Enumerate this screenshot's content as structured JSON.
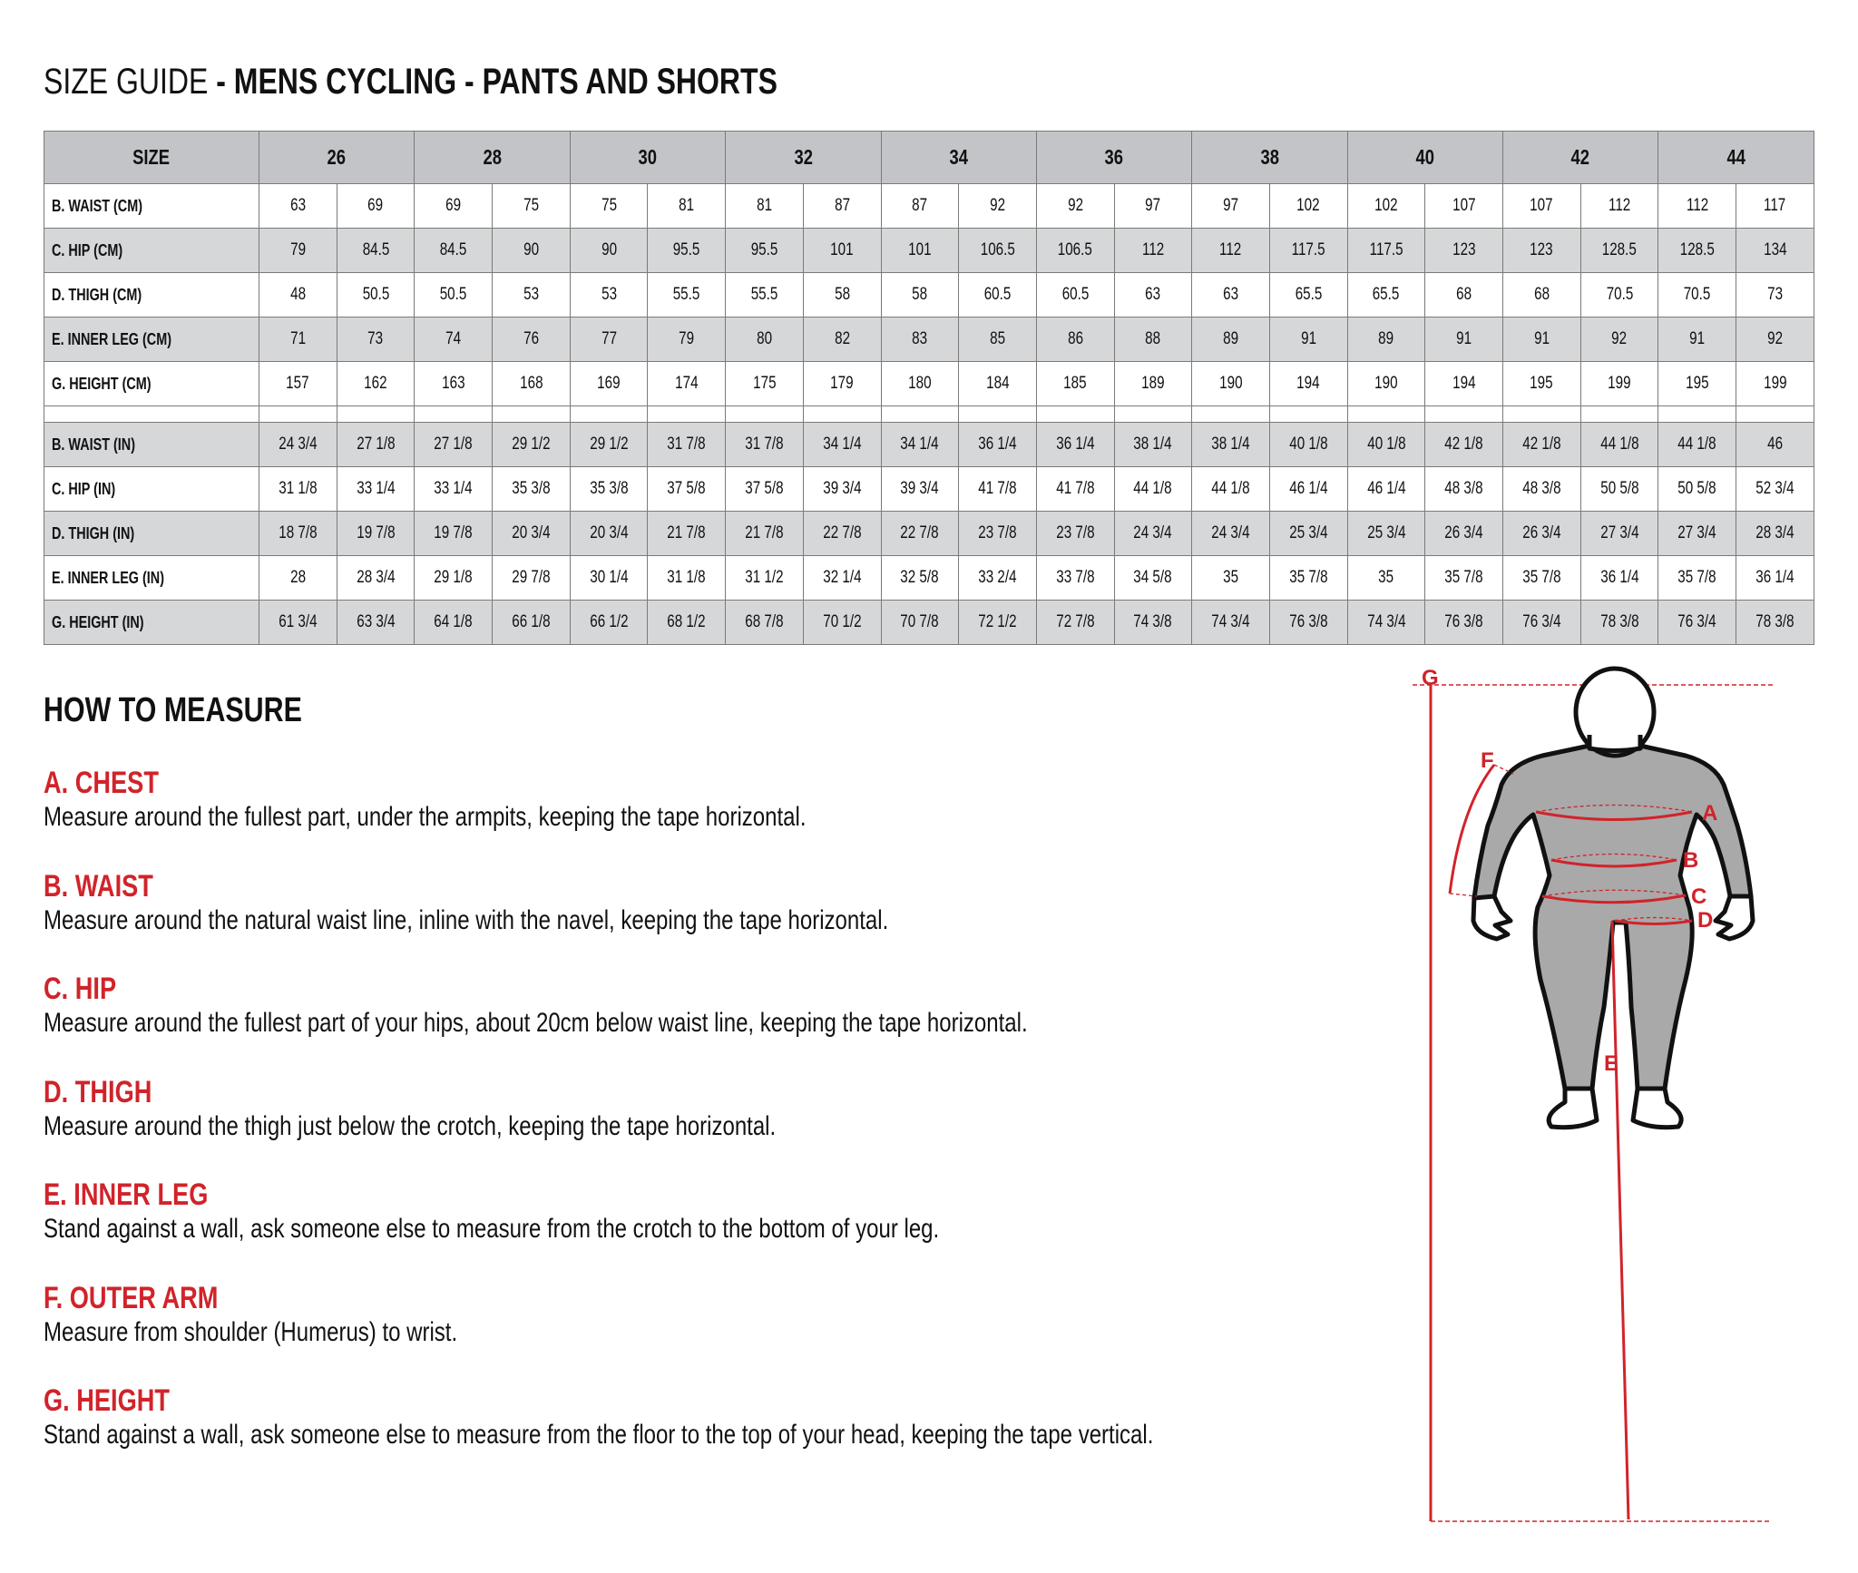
{
  "title": {
    "prefix": "SIZE GUIDE",
    "suffix": " - MENS CYCLING - PANTS AND SHORTS"
  },
  "table": {
    "size_header": "SIZE",
    "sizes": [
      "26",
      "28",
      "30",
      "32",
      "34",
      "36",
      "38",
      "40",
      "42",
      "44"
    ],
    "rows": [
      {
        "label": "B. WAIST (CM)",
        "values": [
          "63",
          "69",
          "69",
          "75",
          "75",
          "81",
          "81",
          "87",
          "87",
          "92",
          "92",
          "97",
          "97",
          "102",
          "102",
          "107",
          "107",
          "112",
          "112",
          "117"
        ]
      },
      {
        "label": "C. HIP (CM)",
        "values": [
          "79",
          "84.5",
          "84.5",
          "90",
          "90",
          "95.5",
          "95.5",
          "101",
          "101",
          "106.5",
          "106.5",
          "112",
          "112",
          "117.5",
          "117.5",
          "123",
          "123",
          "128.5",
          "128.5",
          "134"
        ]
      },
      {
        "label": "D. THIGH (CM)",
        "values": [
          "48",
          "50.5",
          "50.5",
          "53",
          "53",
          "55.5",
          "55.5",
          "58",
          "58",
          "60.5",
          "60.5",
          "63",
          "63",
          "65.5",
          "65.5",
          "68",
          "68",
          "70.5",
          "70.5",
          "73"
        ]
      },
      {
        "label": "E. INNER LEG (CM)",
        "values": [
          "71",
          "73",
          "74",
          "76",
          "77",
          "79",
          "80",
          "82",
          "83",
          "85",
          "86",
          "88",
          "89",
          "91",
          "89",
          "91",
          "91",
          "92",
          "91",
          "92"
        ]
      },
      {
        "label": "G. HEIGHT (CM)",
        "values": [
          "157",
          "162",
          "163",
          "168",
          "169",
          "174",
          "175",
          "179",
          "180",
          "184",
          "185",
          "189",
          "190",
          "194",
          "190",
          "194",
          "195",
          "199",
          "195",
          "199"
        ]
      },
      {
        "label": "B. WAIST (IN)",
        "values": [
          "24 3/4",
          "27 1/8",
          "27 1/8",
          "29 1/2",
          "29 1/2",
          "31 7/8",
          "31 7/8",
          "34 1/4",
          "34 1/4",
          "36 1/4",
          "36 1/4",
          "38 1/4",
          "38 1/4",
          "40 1/8",
          "40 1/8",
          "42 1/8",
          "42 1/8",
          "44 1/8",
          "44 1/8",
          "46"
        ]
      },
      {
        "label": "C. HIP (IN)",
        "values": [
          "31 1/8",
          "33 1/4",
          "33 1/4",
          "35 3/8",
          "35 3/8",
          "37 5/8",
          "37 5/8",
          "39 3/4",
          "39 3/4",
          "41 7/8",
          "41 7/8",
          "44 1/8",
          "44 1/8",
          "46 1/4",
          "46 1/4",
          "48 3/8",
          "48 3/8",
          "50 5/8",
          "50 5/8",
          "52 3/4"
        ]
      },
      {
        "label": "D. THIGH (IN)",
        "values": [
          "18 7/8",
          "19 7/8",
          "19 7/8",
          "20 3/4",
          "20 3/4",
          "21 7/8",
          "21 7/8",
          "22 7/8",
          "22 7/8",
          "23 7/8",
          "23 7/8",
          "24 3/4",
          "24 3/4",
          "25 3/4",
          "25 3/4",
          "26 3/4",
          "26 3/4",
          "27 3/4",
          "27 3/4",
          "28 3/4"
        ]
      },
      {
        "label": "E. INNER LEG (IN)",
        "values": [
          "28",
          "28 3/4",
          "29 1/8",
          "29 7/8",
          "30 1/4",
          "31 1/8",
          "31 1/2",
          "32 1/4",
          "32 5/8",
          "33 2/4",
          "33 7/8",
          "34 5/8",
          "35",
          "35 7/8",
          "35",
          "35 7/8",
          "35 7/8",
          "36 1/4",
          "35 7/8",
          "36 1/4"
        ]
      },
      {
        "label": "G. HEIGHT (IN)",
        "values": [
          "61 3/4",
          "63 3/4",
          "64 1/8",
          "66 1/8",
          "66 1/2",
          "68 1/2",
          "68 7/8",
          "70 1/2",
          "70 7/8",
          "72 1/2",
          "72 7/8",
          "74 3/8",
          "74 3/4",
          "76 3/8",
          "74 3/4",
          "76 3/8",
          "76 3/4",
          "78 3/8",
          "76 3/4",
          "78 3/8"
        ]
      }
    ]
  },
  "how_to_measure": {
    "heading": "HOW TO MEASURE",
    "items": [
      {
        "title": "A. CHEST",
        "text": "Measure around the fullest part, under the armpits, keeping the tape horizontal."
      },
      {
        "title": "B. WAIST",
        "text": "Measure around the natural waist line, inline with the navel, keeping the tape horizontal."
      },
      {
        "title": "C. HIP",
        "text": "Measure around the fullest part of your hips, about 20cm below waist line, keeping the tape horizontal."
      },
      {
        "title": "D. THIGH",
        "text": "Measure around the thigh just below the crotch, keeping the tape horizontal."
      },
      {
        "title": "E. INNER LEG",
        "text": "Stand against a wall, ask someone else to measure from the crotch to the bottom of your leg."
      },
      {
        "title": "F. OUTER ARM",
        "text": "Measure from shoulder (Humerus) to wrist."
      },
      {
        "title": "G. HEIGHT",
        "text": "Stand against a wall, ask someone else to measure from the floor to the top of your head, keeping the tape vertical."
      }
    ]
  },
  "figure": {
    "labels": {
      "a": "A",
      "b": "B",
      "c": "C",
      "d": "D",
      "e": "E",
      "f": "F",
      "g": "G"
    }
  },
  "colors": {
    "accent": "#d1232a",
    "header_bg": "#c3c4c7",
    "row_alt_bg": "#d6d7d9",
    "figure_body": "#a9a9a9"
  }
}
